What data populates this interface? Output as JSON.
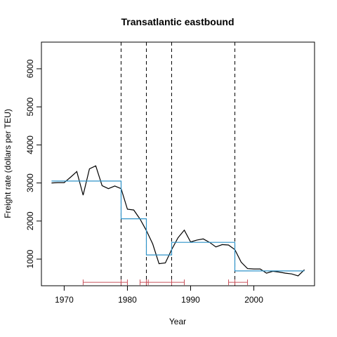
{
  "chart_data": {
    "type": "line",
    "title": "Transatlantic eastbound",
    "xlabel": "Year",
    "ylabel": "Freight rate (dollars per TEU)",
    "xlim": [
      1966.4,
      2009.6
    ],
    "ylim": [
      300,
      6700
    ],
    "xticks": [
      1970,
      1980,
      1990,
      2000
    ],
    "yticks": [
      1000,
      2000,
      3000,
      4000,
      5000,
      6000
    ],
    "grid": false,
    "series": [
      {
        "color": "#000000",
        "x": [
          1968,
          1969,
          1970,
          1971,
          1972,
          1973,
          1974,
          1975,
          1976,
          1977,
          1978,
          1979,
          1980,
          1981,
          1982,
          1983,
          1984,
          1985,
          1986,
          1987,
          1988,
          1989,
          1990,
          1991,
          1992,
          1993,
          1994,
          1995,
          1996,
          1997,
          1998,
          1999,
          2000,
          2001,
          2002,
          2003,
          2004,
          2005,
          2006,
          2007,
          2008
        ],
        "values": [
          3000,
          3010,
          3010,
          3150,
          3300,
          2680,
          3370,
          3450,
          2930,
          2850,
          2920,
          2850,
          2310,
          2290,
          2050,
          1750,
          1400,
          880,
          900,
          1250,
          1560,
          1760,
          1450,
          1500,
          1530,
          1440,
          1320,
          1380,
          1370,
          1250,
          920,
          750,
          740,
          740,
          630,
          680,
          660,
          630,
          610,
          560,
          720
        ]
      },
      {
        "color": "#2f93c8",
        "x": [
          1968,
          1979,
          1979,
          1983,
          1983,
          1987,
          1987,
          1997,
          1997,
          2008
        ],
        "values": [
          3050,
          3050,
          2060,
          2060,
          1110,
          1110,
          1440,
          1440,
          690,
          690
        ]
      }
    ],
    "breakpoints": [
      1979,
      1983,
      1987,
      1997
    ],
    "confidence_intervals": [
      {
        "color": "#c8505a",
        "low": 1973,
        "mid": 1979,
        "high": 1980
      },
      {
        "color": "#c8505a",
        "low": 1982,
        "mid": 1983,
        "high": 1983.3
      },
      {
        "color": "#c8505a",
        "low": 1983,
        "mid": 1987,
        "high": 1989
      },
      {
        "color": "#c8505a",
        "low": 1996,
        "mid": 1997,
        "high": 1999
      }
    ],
    "ci_level": 390
  }
}
